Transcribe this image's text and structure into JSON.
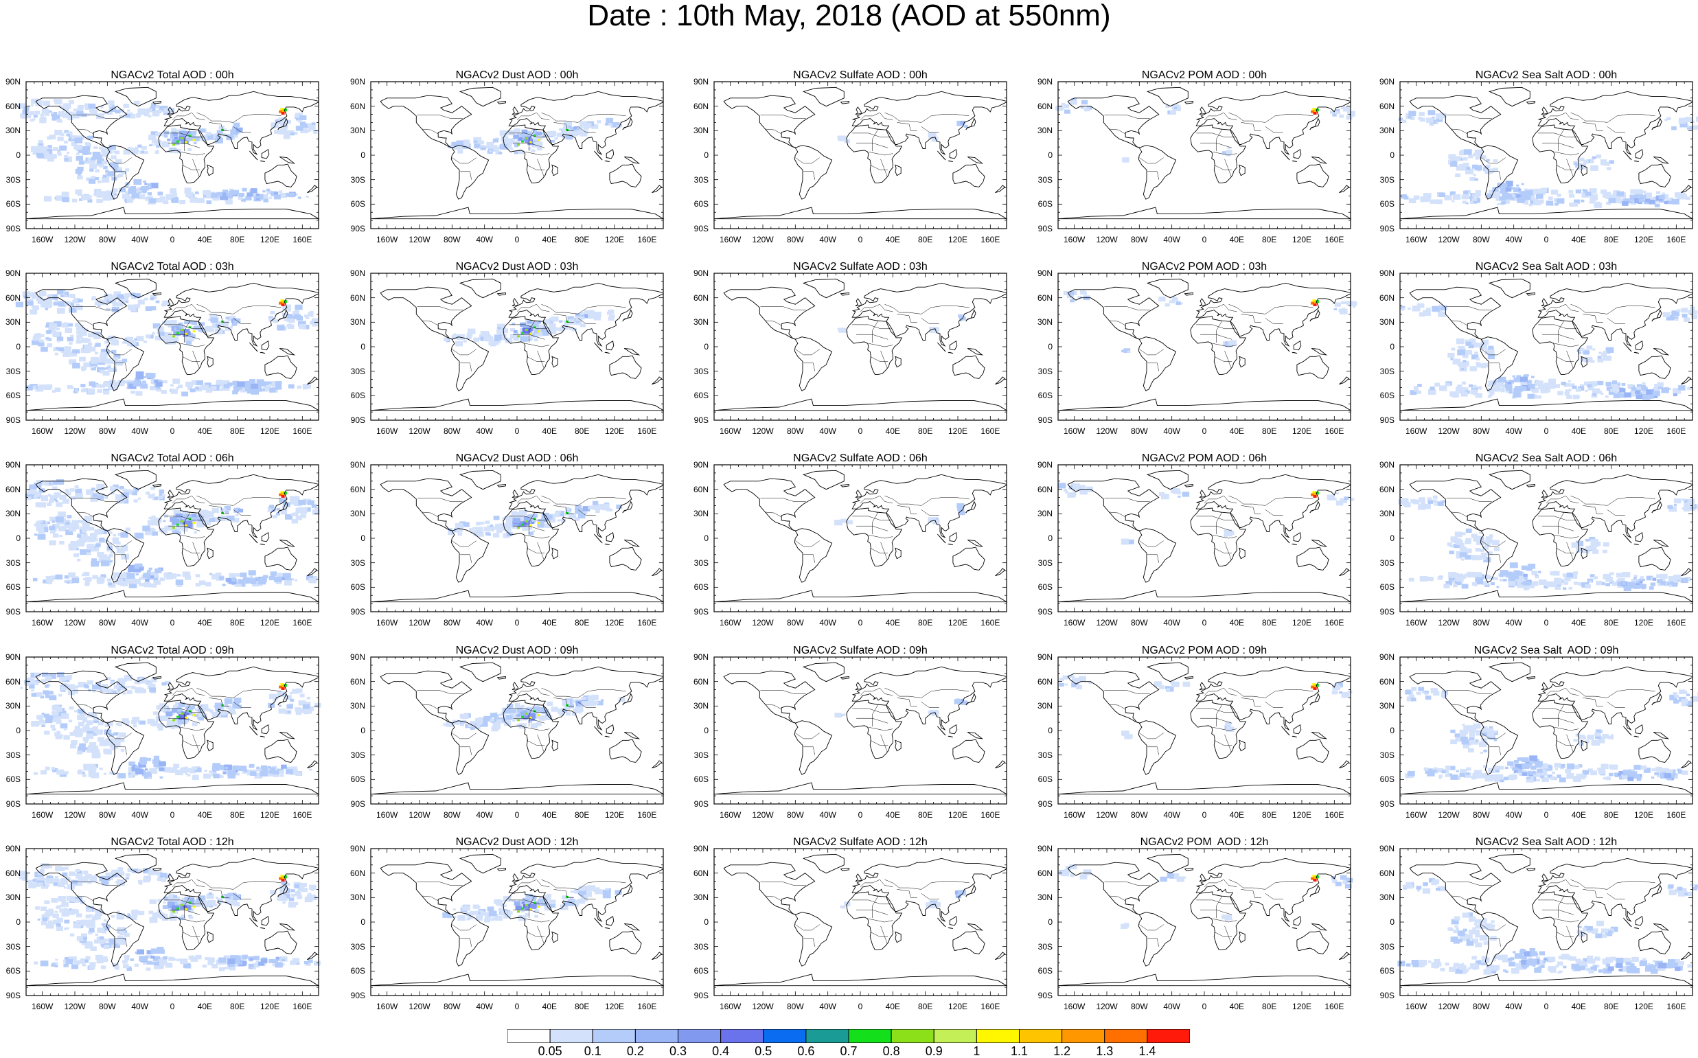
{
  "title": "Date : 10th May, 2018 (AOD at 550nm)",
  "panels": [
    [
      "NGACv2 Total AOD : 00h",
      "NGACv2 Dust AOD : 00h",
      "NGACv2 Sulfate AOD : 00h",
      "NGACv2 POM AOD : 00h",
      "NGACv2 Sea Salt AOD : 00h"
    ],
    [
      "NGACv2 Total AOD : 03h",
      "NGACv2 Dust AOD : 03h",
      "NGACv2 Sulfate AOD : 03h",
      "NGACv2 POM AOD : 03h",
      "NGACv2 Sea Salt AOD : 03h"
    ],
    [
      "NGACv2 Total AOD : 06h",
      "NGACv2 Dust AOD : 06h",
      "NGACv2 Sulfate AOD : 06h",
      "NGACv2 POM AOD : 06h",
      "NGACv2 Sea Salt AOD : 06h"
    ],
    [
      "NGACv2 Total AOD : 09h",
      "NGACv2 Dust AOD : 09h",
      "NGACv2 Sulfate AOD : 09h",
      "NGACv2 POM AOD : 09h",
      "NGACv2 Sea Salt  AOD : 09h"
    ],
    [
      "NGACv2 Total AOD : 12h",
      "NGACv2 Dust AOD : 12h",
      "NGACv2 Sulfate AOD : 12h",
      "NGACv2 POM  AOD : 12h",
      "NGACv2 Sea Salt AOD : 12h"
    ]
  ],
  "lat_labels": [
    "90N",
    "60N",
    "30N",
    "0",
    "30S",
    "60S",
    "90S"
  ],
  "lon_labels": [
    "160W",
    "120W",
    "80W",
    "40W",
    "0",
    "40E",
    "80E",
    "120E",
    "160E"
  ],
  "lat_values": [
    90,
    60,
    30,
    0,
    -30,
    -60,
    -90
  ],
  "lon_values": [
    -160,
    -120,
    -80,
    -40,
    0,
    40,
    80,
    120,
    160
  ],
  "colorbar": {
    "labels": [
      "0.05",
      "0.1",
      "0.2",
      "0.3",
      "0.4",
      "0.5",
      "0.6",
      "0.7",
      "0.8",
      "0.9",
      "1",
      "1.1",
      "1.2",
      "1.3",
      "1.4"
    ],
    "colors": [
      "#ffffff",
      "#d3e1fb",
      "#b4ccfa",
      "#99b5f6",
      "#8299f0",
      "#6a73ec",
      "#0a6cf0",
      "#1a9b96",
      "#13e01a",
      "#8be01a",
      "#c4ef56",
      "#fff700",
      "#ffc400",
      "#ff9800",
      "#ff7000",
      "#ff1a0a"
    ]
  }
}
